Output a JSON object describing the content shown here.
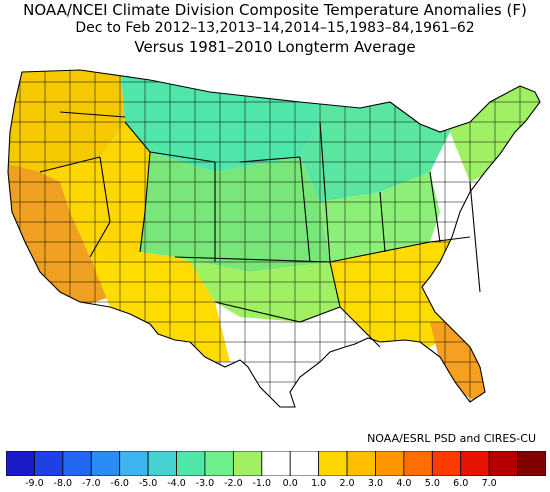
{
  "header": {
    "line1": "NOAA/NCEI Climate Division Composite Temperature Anomalies (F)",
    "line2": "Dec to Feb  2012–13,2013–14,2014–15,1983–84,1961–62",
    "line3": "Versus 1981–2010 Longterm Average"
  },
  "credit": "NOAA/ESRL PSD and CIRES-CU",
  "colorbar": {
    "labels": [
      "-9.0",
      "-8.0",
      "-7.0",
      "-6.0",
      "-5.0",
      "-4.0",
      "-3.0",
      "-2.0",
      "-1.0",
      "0.0",
      "1.0",
      "2.0",
      "3.0",
      "4.0",
      "5.0",
      "6.0",
      "7.0"
    ],
    "colors": [
      "#1a1ac8",
      "#1f40e6",
      "#2266f2",
      "#2a8cf5",
      "#3cb4f0",
      "#46d2d2",
      "#50e6aa",
      "#6ef08c",
      "#a0f064",
      "#ffffff",
      "#ffffff",
      "#ffd700",
      "#ffbe00",
      "#ff9600",
      "#ff6e00",
      "#ff3c00",
      "#e61400",
      "#b40000",
      "#820000"
    ]
  },
  "map": {
    "regions": [
      {
        "name": "pacific-northwest",
        "color": "#f5c800"
      },
      {
        "name": "california",
        "color": "#f0a020"
      },
      {
        "name": "great-basin",
        "color": "#ffd700"
      },
      {
        "name": "southwest",
        "color": "#ffdc00"
      },
      {
        "name": "northern-plains",
        "color": "#50e6aa"
      },
      {
        "name": "central-plains",
        "color": "#78e678"
      },
      {
        "name": "southern-plains",
        "color": "#a0f064"
      },
      {
        "name": "great-lakes",
        "color": "#5ae6a0"
      },
      {
        "name": "ohio-valley",
        "color": "#8cf078"
      },
      {
        "name": "northeast",
        "color": "#a0f064"
      },
      {
        "name": "mid-atlantic",
        "color": "#ffffff"
      },
      {
        "name": "southeast",
        "color": "#ffdc00"
      },
      {
        "name": "florida",
        "color": "#f5a020"
      },
      {
        "name": "texas-gulf",
        "color": "#ffffff"
      }
    ]
  }
}
